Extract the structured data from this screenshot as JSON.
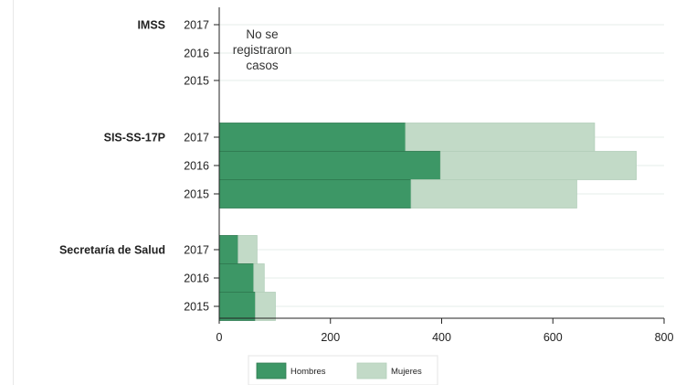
{
  "chart_data": {
    "type": "bar",
    "orientation": "horizontal",
    "stacked": true,
    "title": "",
    "xlabel": "",
    "ylabel": "",
    "xlim": [
      0,
      800
    ],
    "x_ticks": [
      "0",
      "200",
      "400",
      "600",
      "800"
    ],
    "grid": true,
    "legend_position": "bottom",
    "groups": [
      {
        "label": "IMSS",
        "years": [
          "2017",
          "2016",
          "2015"
        ],
        "annotation": [
          "No se",
          "registraron",
          "casos"
        ]
      },
      {
        "label": "SIS-SS-17P",
        "years": [
          "2017",
          "2016",
          "2015"
        ]
      },
      {
        "label": "Secretaría de Salud",
        "years": [
          "2017",
          "2016",
          "2015"
        ]
      }
    ],
    "series": [
      {
        "name": "Hombres",
        "color": "#3d9766",
        "values": [
          [
            null,
            null,
            null
          ],
          [
            335,
            398,
            345
          ],
          [
            34,
            62,
            65
          ]
        ]
      },
      {
        "name": "Mujeres",
        "color": "#c2dac7",
        "values": [
          [
            null,
            null,
            null
          ],
          [
            340,
            352,
            298
          ],
          [
            34,
            19,
            36
          ]
        ]
      }
    ]
  }
}
